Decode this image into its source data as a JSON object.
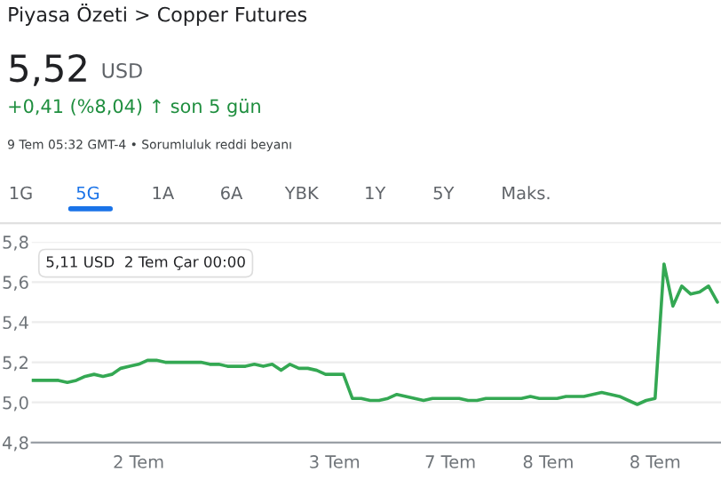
{
  "chart_data": {
    "type": "line",
    "title": "Piyasa Özeti > Copper Futures",
    "subtitle": "5,52 USD",
    "annotations": [
      "+0,41 (%8,04) ↑ son 5 gün",
      "9 Tem 05:32 GMT-4 • Sorumluluk reddi beyanı",
      "1G",
      "5G",
      "1A",
      "6A",
      "YBK",
      "1Y",
      "5Y",
      "Maks.",
      "5,11 USD  2 Tem Çar 00:00"
    ],
    "categories": [
      null,
      null,
      null,
      null,
      null,
      null,
      null,
      null,
      null,
      null,
      null,
      null,
      "2 Tem",
      null,
      null,
      null,
      null,
      null,
      null,
      null,
      null,
      null,
      null,
      null,
      null,
      null,
      null,
      null,
      null,
      null,
      null,
      null,
      null,
      null,
      "3 Tem",
      null,
      null,
      null,
      null,
      null,
      null,
      null,
      null,
      null,
      null,
      null,
      null,
      "7 Tem",
      null,
      null,
      null,
      null,
      null,
      null,
      null,
      null,
      null,
      null,
      "8 Tem",
      null,
      null,
      null,
      null,
      null,
      null,
      null,
      null,
      null,
      null,
      null,
      "8 Tem",
      null,
      null,
      null,
      null,
      null,
      null,
      null
    ],
    "series": [
      {
        "color": "#34a853",
        "values": [
          5.11,
          5.11,
          5.11,
          5.11,
          5.1,
          5.11,
          5.13,
          5.14,
          5.13,
          5.14,
          5.17,
          5.18,
          5.19,
          5.21,
          5.21,
          5.2,
          5.2,
          5.2,
          5.2,
          5.2,
          5.19,
          5.19,
          5.18,
          5.18,
          5.18,
          5.19,
          5.18,
          5.19,
          5.16,
          5.19,
          5.17,
          5.17,
          5.16,
          5.14,
          5.14,
          5.14,
          5.02,
          5.02,
          5.01,
          5.01,
          5.02,
          5.04,
          5.03,
          5.02,
          5.01,
          5.02,
          5.02,
          5.02,
          5.02,
          5.01,
          5.01,
          5.02,
          5.02,
          5.02,
          5.02,
          5.02,
          5.03,
          5.02,
          5.02,
          5.02,
          5.03,
          5.03,
          5.03,
          5.04,
          5.05,
          5.04,
          5.03,
          5.01,
          4.99,
          5.01,
          5.02,
          5.69,
          5.48,
          5.58,
          5.54,
          5.55,
          5.58,
          5.5
        ]
      }
    ],
    "ylim": [
      4.8,
      5.8
    ],
    "yticks": [
      {
        "value": 4.8,
        "label": "4,8"
      },
      {
        "value": 5.0,
        "label": "5,0"
      },
      {
        "value": 5.2,
        "label": "5,2"
      },
      {
        "value": 5.4,
        "label": "5,4"
      },
      {
        "value": 5.6,
        "label": "5,6"
      },
      {
        "value": 5.8,
        "label": "5,8"
      }
    ],
    "grid": "y",
    "legend": false,
    "marker": "none",
    "line_style": "solid"
  }
}
